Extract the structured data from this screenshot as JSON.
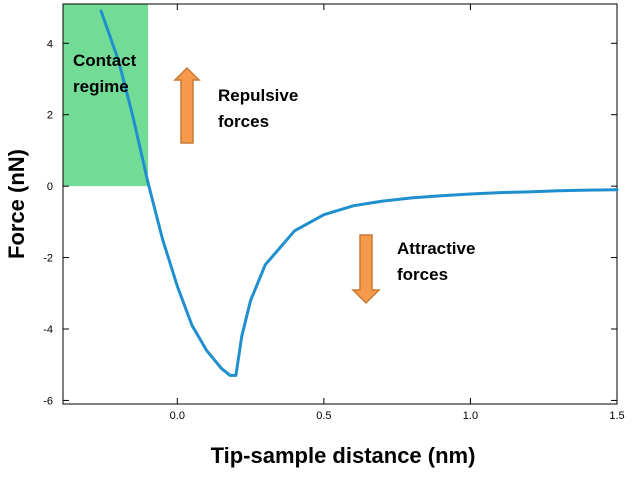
{
  "chart_data": {
    "type": "line",
    "title": "",
    "xlabel": "Tip-sample distance (nm)",
    "ylabel": "Force (nN)",
    "xlim": [
      -0.39,
      1.5
    ],
    "ylim": [
      -6.1,
      5.1
    ],
    "x_ticks": [
      0.0,
      0.5,
      1.0,
      1.5
    ],
    "x_tick_labels": [
      "0.0",
      "0.5",
      "1.0",
      "1.5"
    ],
    "y_ticks": [
      4,
      2,
      0,
      -2,
      -4,
      -6
    ],
    "y_tick_labels": [
      "4",
      "2",
      "0",
      "-2",
      "-4",
      "-6"
    ],
    "grid": false,
    "series": [
      {
        "x": [
          -0.26,
          -0.2,
          -0.15,
          -0.1,
          -0.05,
          0.0,
          0.05,
          0.1,
          0.15,
          0.18,
          0.2,
          0.22,
          0.25,
          0.3,
          0.4,
          0.5,
          0.6,
          0.7,
          0.8,
          0.9,
          1.0,
          1.1,
          1.2,
          1.3,
          1.4,
          1.5
        ],
        "y": [
          4.9,
          3.5,
          1.9,
          0.1,
          -1.5,
          -2.8,
          -3.9,
          -4.6,
          -5.1,
          -5.3,
          -5.3,
          -4.2,
          -3.2,
          -2.2,
          -1.25,
          -0.8,
          -0.55,
          -0.42,
          -0.33,
          -0.27,
          -0.22,
          -0.18,
          -0.16,
          -0.13,
          -0.11,
          -0.1
        ],
        "color": "#1f8fcf"
      }
    ],
    "regions": [
      {
        "label_lines": [
          "Contact",
          "regime"
        ],
        "x_range": [
          -0.39,
          -0.1
        ],
        "y_range": [
          0,
          5.1
        ],
        "color": "#72dc96"
      }
    ],
    "annotations": [
      {
        "lines": [
          "Repulsive",
          "forces"
        ],
        "arrow": "up",
        "color": "#f59a4a"
      },
      {
        "lines": [
          "Attractive",
          "forces"
        ],
        "arrow": "down",
        "color": "#f59a4a"
      }
    ]
  }
}
